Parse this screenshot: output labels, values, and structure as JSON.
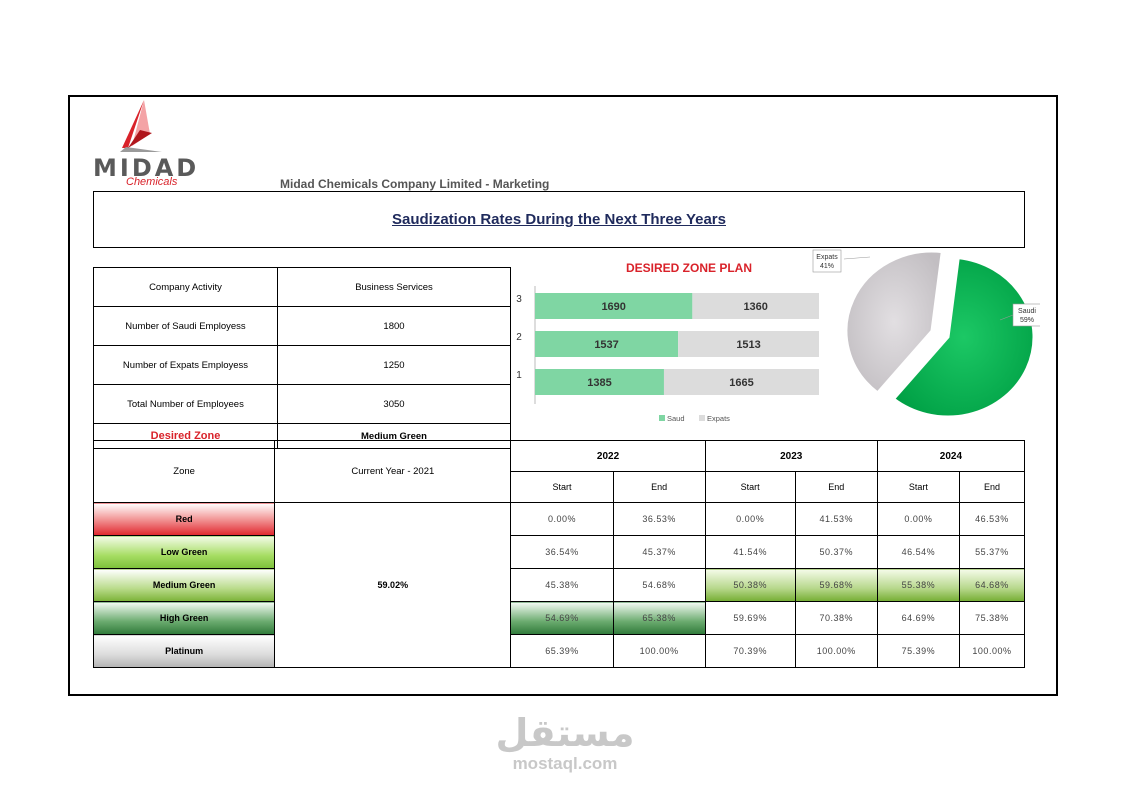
{
  "header": {
    "logo_name": "MIDAD",
    "logo_sub": "Chemicals",
    "company": "Midad Chemicals Company Limited - Marketing",
    "title": "Saudization Rates During the Next Three Years"
  },
  "info": {
    "rows": [
      {
        "label": "Company Activity",
        "value": "Business Services"
      },
      {
        "label": "Number of Saudi Employess",
        "value": "1800"
      },
      {
        "label": "Number of Expats Employess",
        "value": "1250"
      },
      {
        "label": "Total Number of Employees",
        "value": "3050"
      }
    ],
    "desired_zone_label": "Desired Zone",
    "desired_zone_value": "Medium Green"
  },
  "zones_table": {
    "zone_header": "Zone",
    "current_header": "Current Year - 2021",
    "current_value": "59.02%",
    "years": [
      "2022",
      "2023",
      "2024"
    ],
    "start_label": "Start",
    "end_label": "End",
    "rows": [
      {
        "zone": "Red",
        "values": [
          "0.00%",
          "36.53%",
          "0.00%",
          "41.53%",
          "0.00%",
          "46.53%"
        ]
      },
      {
        "zone": "Low Green",
        "values": [
          "36.54%",
          "45.37%",
          "41.54%",
          "50.37%",
          "46.54%",
          "55.37%"
        ]
      },
      {
        "zone": "Medium Green",
        "values": [
          "45.38%",
          "54.68%",
          "50.38%",
          "59.68%",
          "55.38%",
          "64.68%"
        ]
      },
      {
        "zone": "High Green",
        "values": [
          "54.69%",
          "65.38%",
          "59.69%",
          "70.38%",
          "64.69%",
          "75.38%"
        ]
      },
      {
        "zone": "Platinum",
        "values": [
          "65.39%",
          "100.00%",
          "70.39%",
          "100.00%",
          "75.39%",
          "100.00%"
        ]
      }
    ]
  },
  "chart_data": [
    {
      "type": "bar",
      "orientation": "horizontal",
      "stacked": true,
      "title": "DESIRED ZONE PLAN",
      "categories": [
        "1",
        "2",
        "3"
      ],
      "series": [
        {
          "name": "Saud",
          "values": [
            1385,
            1537,
            1690
          ],
          "color": "#7fd6a3"
        },
        {
          "name": "Expats",
          "values": [
            1665,
            1513,
            1360
          ],
          "color": "#dcdcdc"
        }
      ],
      "legend": "bottom",
      "xlim": [
        0,
        3050
      ]
    },
    {
      "type": "pie",
      "labels": [
        "Saudi",
        "Expats"
      ],
      "values": [
        59,
        41
      ],
      "value_labels": [
        "59%",
        "41%"
      ],
      "colors": [
        "#00b050",
        "#d4d0d4"
      ]
    }
  ],
  "colors": {
    "title_text": "#1f2a5c",
    "accent_red": "#d9222a",
    "saudi_green": "#00b050"
  },
  "watermark": {
    "arabic": "مستقل",
    "latin": "mostaql.com"
  }
}
